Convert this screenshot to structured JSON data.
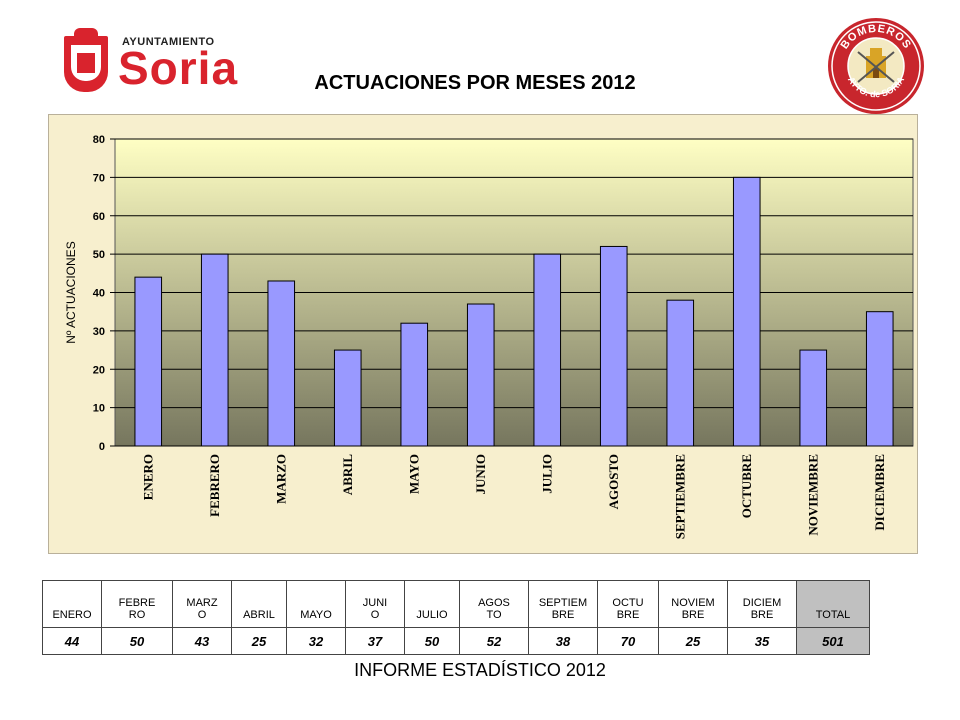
{
  "header": {
    "logo_top_text": "AYUNTAMIENTO",
    "logo_name": "Soria",
    "badge_top_text": "BOMBEROS",
    "badge_bottom_text": "AYTO. de SORIA"
  },
  "colors": {
    "bar_fill": "#9999ff",
    "plot_top": "#ffffc4",
    "plot_bottom": "#76765e",
    "brand_red": "#d9232d",
    "badge_red": "#c8262d"
  },
  "chart_data": {
    "type": "bar",
    "title": "ACTUACIONES POR MESES 2012",
    "ylabel": "Nº ACTUACIONES",
    "xlabel": "",
    "ylim": [
      0,
      80
    ],
    "yticks": [
      0,
      10,
      20,
      30,
      40,
      50,
      60,
      70,
      80
    ],
    "grid": true,
    "categories": [
      "ENERO",
      "FEBRERO",
      "MARZO",
      "ABRIL",
      "MAYO",
      "JUNIO",
      "JULIO",
      "AGOSTO",
      "SEPTIEMBRE",
      "OCTUBRE",
      "NOVIEMBRE",
      "DICIEMBRE"
    ],
    "values": [
      44,
      50,
      43,
      25,
      32,
      37,
      50,
      52,
      38,
      70,
      25,
      35
    ]
  },
  "table": {
    "headers": [
      "ENERO",
      "FEBRE\nRO",
      "MARZ\nO",
      "ABRIL",
      "MAYO",
      "JUNI\nO",
      "JULIO",
      "AGOS\nTO",
      "SEPTIEM\nBRE",
      "OCTU\nBRE",
      "NOVIEM\nBRE",
      "DICIEM\nBRE",
      "TOTAL"
    ],
    "values": [
      "44",
      "50",
      "43",
      "25",
      "32",
      "37",
      "50",
      "52",
      "38",
      "70",
      "25",
      "35",
      "501"
    ]
  },
  "footer": "INFORME ESTADÍSTICO 2012"
}
